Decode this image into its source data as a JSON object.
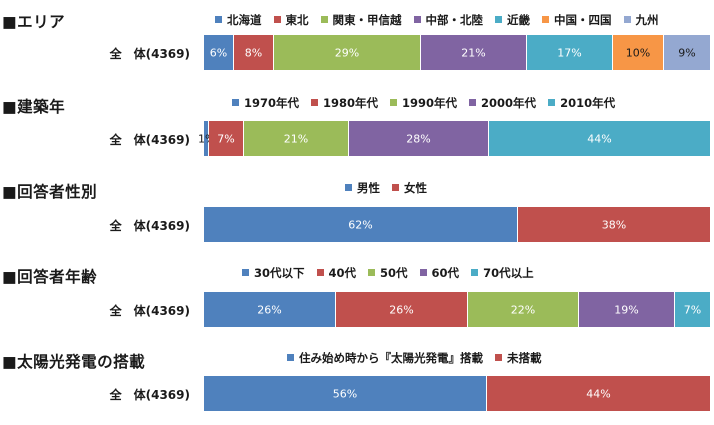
{
  "colors": {
    "blue": "#4f81bd",
    "red": "#c0504d",
    "green": "#9bbb59",
    "purple": "#8064a2",
    "teal": "#4bacc6",
    "orange": "#f79646",
    "lightblue": "#94a8d1"
  },
  "chart_data": [
    {
      "type": "bar",
      "orientation": "horizontal-stacked-100",
      "title": "■エリア",
      "categories": [
        "全　体(4369)"
      ],
      "series": [
        {
          "name": "北海道",
          "values": [
            6
          ],
          "label": "6%",
          "color": "#4f81bd"
        },
        {
          "name": "東北",
          "values": [
            8
          ],
          "label": "8%",
          "color": "#c0504d"
        },
        {
          "name": "関東・甲信越",
          "values": [
            29
          ],
          "label": "29%",
          "color": "#9bbb59"
        },
        {
          "name": "中部・北陸",
          "values": [
            21
          ],
          "label": "21%",
          "color": "#8064a2"
        },
        {
          "name": "近畿",
          "values": [
            17
          ],
          "label": "17%",
          "color": "#4bacc6"
        },
        {
          "name": "中国・四国",
          "values": [
            10
          ],
          "label": "10%",
          "color": "#f79646"
        },
        {
          "name": "九州",
          "values": [
            9
          ],
          "label": "9%",
          "color": "#94a8d1"
        }
      ],
      "legend": "top"
    },
    {
      "type": "bar",
      "orientation": "horizontal-stacked-100",
      "title": "■建築年",
      "categories": [
        "全　体(4369)"
      ],
      "series": [
        {
          "name": "1970年代",
          "values": [
            1
          ],
          "label": "1%",
          "color": "#4f81bd"
        },
        {
          "name": "1980年代",
          "values": [
            7
          ],
          "label": "7%",
          "color": "#c0504d"
        },
        {
          "name": "1990年代",
          "values": [
            21
          ],
          "label": "21%",
          "color": "#9bbb59"
        },
        {
          "name": "2000年代",
          "values": [
            28
          ],
          "label": "28%",
          "color": "#8064a2"
        },
        {
          "name": "2010年代",
          "values": [
            44
          ],
          "label": "44%",
          "color": "#4bacc6"
        }
      ],
      "legend": "top"
    },
    {
      "type": "bar",
      "orientation": "horizontal-stacked-100",
      "title": "■回答者性別",
      "categories": [
        "全　体(4369)"
      ],
      "series": [
        {
          "name": "男性",
          "values": [
            62
          ],
          "label": "62%",
          "color": "#4f81bd"
        },
        {
          "name": "女性",
          "values": [
            38
          ],
          "label": "38%",
          "color": "#c0504d"
        }
      ],
      "legend": "top"
    },
    {
      "type": "bar",
      "orientation": "horizontal-stacked-100",
      "title": "■回答者年齢",
      "categories": [
        "全　体(4369)"
      ],
      "series": [
        {
          "name": "30代以下",
          "values": [
            26
          ],
          "label": "26%",
          "color": "#4f81bd"
        },
        {
          "name": "40代",
          "values": [
            26
          ],
          "label": "26%",
          "color": "#c0504d"
        },
        {
          "name": "50代",
          "values": [
            22
          ],
          "label": "22%",
          "color": "#9bbb59"
        },
        {
          "name": "60代",
          "values": [
            19
          ],
          "label": "19%",
          "color": "#8064a2"
        },
        {
          "name": "70代以上",
          "values": [
            7
          ],
          "label": "7%",
          "color": "#4bacc6"
        }
      ],
      "legend": "top"
    },
    {
      "type": "bar",
      "orientation": "horizontal-stacked-100",
      "title": "■太陽光発電の搭載",
      "categories": [
        "全　体(4369)"
      ],
      "series": [
        {
          "name": "住み始め時から『太陽光発電』搭載",
          "values": [
            56
          ],
          "label": "56%",
          "color": "#4f81bd"
        },
        {
          "name": "未搭載",
          "values": [
            44
          ],
          "label": "44%",
          "color": "#c0504d"
        }
      ],
      "legend": "top"
    }
  ]
}
